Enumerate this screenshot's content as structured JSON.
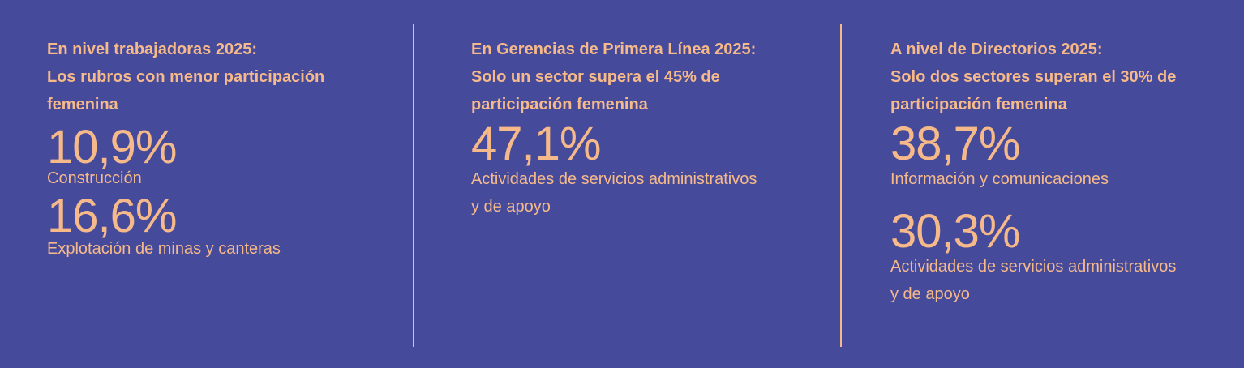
{
  "panels": [
    {
      "heading": [
        "En nivel trabajadoras 2025:",
        "Los rubros con menor participación",
        "femenina"
      ],
      "stats": [
        {
          "value": "10,9%",
          "label": [
            "Construcción"
          ]
        },
        {
          "value": "16,6%",
          "label": [
            "Explotación de minas y canteras"
          ]
        }
      ]
    },
    {
      "heading": [
        "En Gerencias de Primera Línea 2025:",
        "Solo un sector supera el 45% de",
        "participación femenina"
      ],
      "stats": [
        {
          "value": "47,1%",
          "label": [
            "Actividades de servicios administrativos",
            "y de apoyo"
          ]
        }
      ]
    },
    {
      "heading": [
        "A nivel de Directorios 2025:",
        "Solo dos sectores superan el 30% de",
        "participación femenina"
      ],
      "stats": [
        {
          "value": "38,7%",
          "label": [
            "Información y comunicaciones"
          ]
        },
        {
          "value": "30,3%",
          "label": [
            "Actividades de servicios administrativos",
            "y de apoyo"
          ]
        }
      ]
    }
  ],
  "colors": {
    "background": "#454a9b",
    "accent": "#f6b98a"
  }
}
